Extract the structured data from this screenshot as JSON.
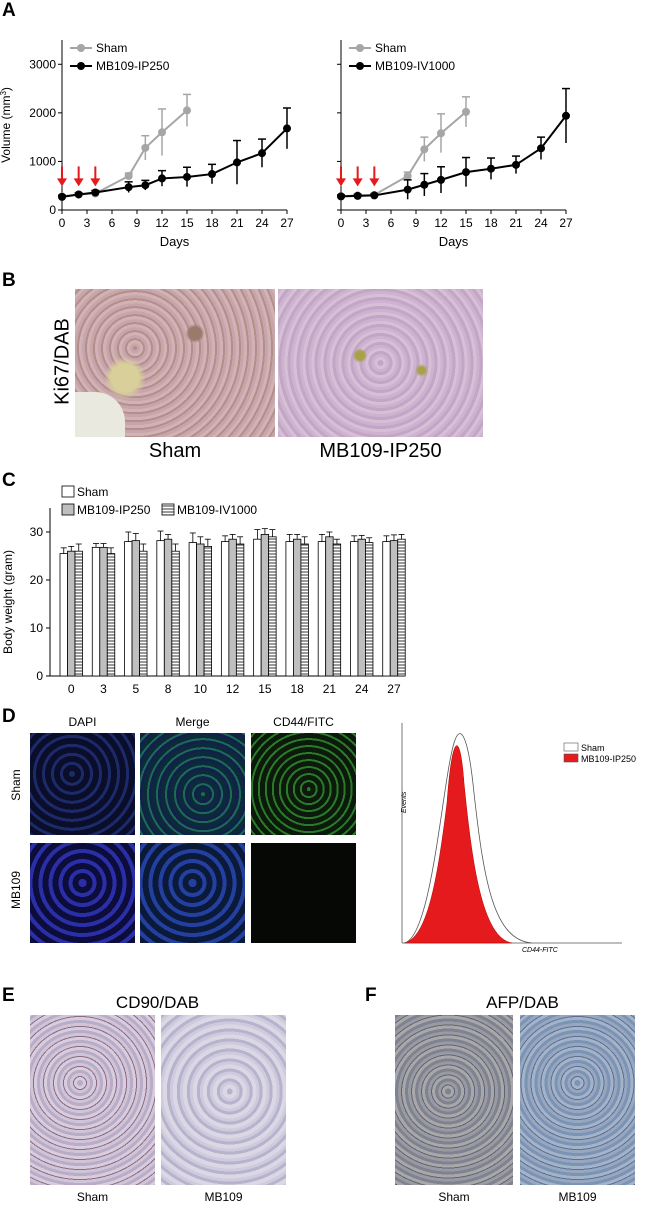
{
  "panels": {
    "a": "A",
    "b": "B",
    "c": "C",
    "d": "D",
    "e": "E",
    "f": "F"
  },
  "chart_data": [
    {
      "type": "line",
      "panel": "A-left",
      "ylabel": "Volume (mm3)",
      "xlabel": "Days",
      "ylim": [
        0,
        3500
      ],
      "yticks": [
        0,
        1000,
        2000,
        3000
      ],
      "xticks": [
        0,
        3,
        6,
        9,
        12,
        15,
        18,
        21,
        24,
        27
      ],
      "xlim": [
        0,
        27
      ],
      "arrows_at_days": [
        0,
        2,
        4
      ],
      "legend_position": "top-left",
      "series": [
        {
          "name": "Sham",
          "color": "#a6a6a6",
          "x": [
            0,
            2,
            4,
            8,
            10,
            12,
            15
          ],
          "y": [
            280,
            320,
            340,
            700,
            1280,
            1600,
            2050
          ],
          "err": [
            30,
            30,
            30,
            60,
            250,
            480,
            330
          ]
        },
        {
          "name": "MB109-IP250",
          "color": "#000000",
          "x": [
            0,
            2,
            4,
            8,
            10,
            12,
            15,
            18,
            21,
            24,
            27
          ],
          "y": [
            270,
            320,
            360,
            470,
            510,
            650,
            680,
            740,
            980,
            1170,
            1680
          ],
          "err": [
            30,
            30,
            40,
            110,
            100,
            160,
            200,
            200,
            450,
            290,
            420
          ]
        }
      ]
    },
    {
      "type": "line",
      "panel": "A-right",
      "ylabel": "",
      "xlabel": "Days",
      "ylim": [
        0,
        3500
      ],
      "xticks": [
        0,
        3,
        6,
        9,
        12,
        15,
        18,
        21,
        24,
        27
      ],
      "xlim": [
        0,
        27
      ],
      "arrows_at_days": [
        0,
        2,
        4
      ],
      "legend_position": "top-left",
      "series": [
        {
          "name": "Sham",
          "color": "#a6a6a6",
          "x": [
            0,
            2,
            4,
            8,
            10,
            12,
            15
          ],
          "y": [
            280,
            300,
            310,
            700,
            1250,
            1580,
            2020
          ],
          "err": [
            30,
            30,
            30,
            80,
            250,
            400,
            310
          ]
        },
        {
          "name": "MB109-IV1000",
          "color": "#000000",
          "x": [
            0,
            2,
            4,
            8,
            10,
            12,
            15,
            18,
            21,
            24,
            27
          ],
          "y": [
            280,
            290,
            300,
            420,
            520,
            620,
            780,
            850,
            930,
            1270,
            1940
          ],
          "err": [
            30,
            30,
            30,
            200,
            230,
            270,
            300,
            220,
            180,
            230,
            560
          ]
        }
      ]
    },
    {
      "type": "bar",
      "panel": "C",
      "ylabel": "Body weight (gram)",
      "ylim": [
        0,
        35
      ],
      "yticks": [
        0,
        10,
        20,
        30
      ],
      "categories": [
        "0",
        "3",
        "5",
        "8",
        "10",
        "12",
        "15",
        "18",
        "21",
        "24",
        "27"
      ],
      "legend_position": "top-left",
      "series": [
        {
          "name": "Sham",
          "fill": "white",
          "values": [
            25.5,
            26.8,
            28.0,
            28.2,
            27.8,
            28.0,
            28.5,
            28.0,
            28.0,
            28.0,
            28.0
          ],
          "err": [
            1.2,
            0.8,
            2.0,
            2.0,
            2.0,
            1.2,
            2.0,
            1.5,
            1.5,
            1.2,
            1.2
          ]
        },
        {
          "name": "MB109-IP250",
          "fill": "gray",
          "values": [
            26.0,
            26.8,
            28.2,
            28.5,
            27.5,
            28.5,
            29.5,
            28.5,
            29.0,
            28.5,
            28.2
          ],
          "err": [
            1.0,
            0.8,
            1.5,
            1.0,
            1.5,
            1.0,
            1.2,
            1.0,
            1.0,
            0.8,
            1.2
          ]
        },
        {
          "name": "MB109-IV1000",
          "fill": "striped",
          "values": [
            26.0,
            25.5,
            26.0,
            26.0,
            27.0,
            27.5,
            29.0,
            27.5,
            27.5,
            27.8,
            28.5
          ],
          "err": [
            1.5,
            1.2,
            1.5,
            1.5,
            1.5,
            1.5,
            1.5,
            1.5,
            1.0,
            1.0,
            1.0
          ]
        }
      ]
    },
    {
      "type": "area",
      "panel": "D-histogram",
      "ylabel": "Events",
      "xlabel": "CD44-FITC",
      "legend_position": "top-right",
      "series": [
        {
          "name": "Sham",
          "fill": "white"
        },
        {
          "name": "MB109-IP250",
          "fill": "#e41a1c"
        }
      ]
    }
  ],
  "panel_b": {
    "ylabel": "Ki67/DAB",
    "captions": [
      "Sham",
      "MB109-IP250"
    ]
  },
  "panel_d": {
    "col_headers": [
      "DAPI",
      "Merge",
      "CD44/FITC"
    ],
    "row_labels": [
      "Sham",
      "MB109"
    ]
  },
  "panel_e": {
    "title": "CD90/DAB",
    "captions": [
      "Sham",
      "MB109"
    ]
  },
  "panel_f": {
    "title": "AFP/DAB",
    "captions": [
      "Sham",
      "MB109"
    ]
  },
  "colors": {
    "sham_line": "#a6a6a6",
    "treated_line": "#000000",
    "arrow": "#e41a1c",
    "flow_fill": "#e41a1c"
  }
}
